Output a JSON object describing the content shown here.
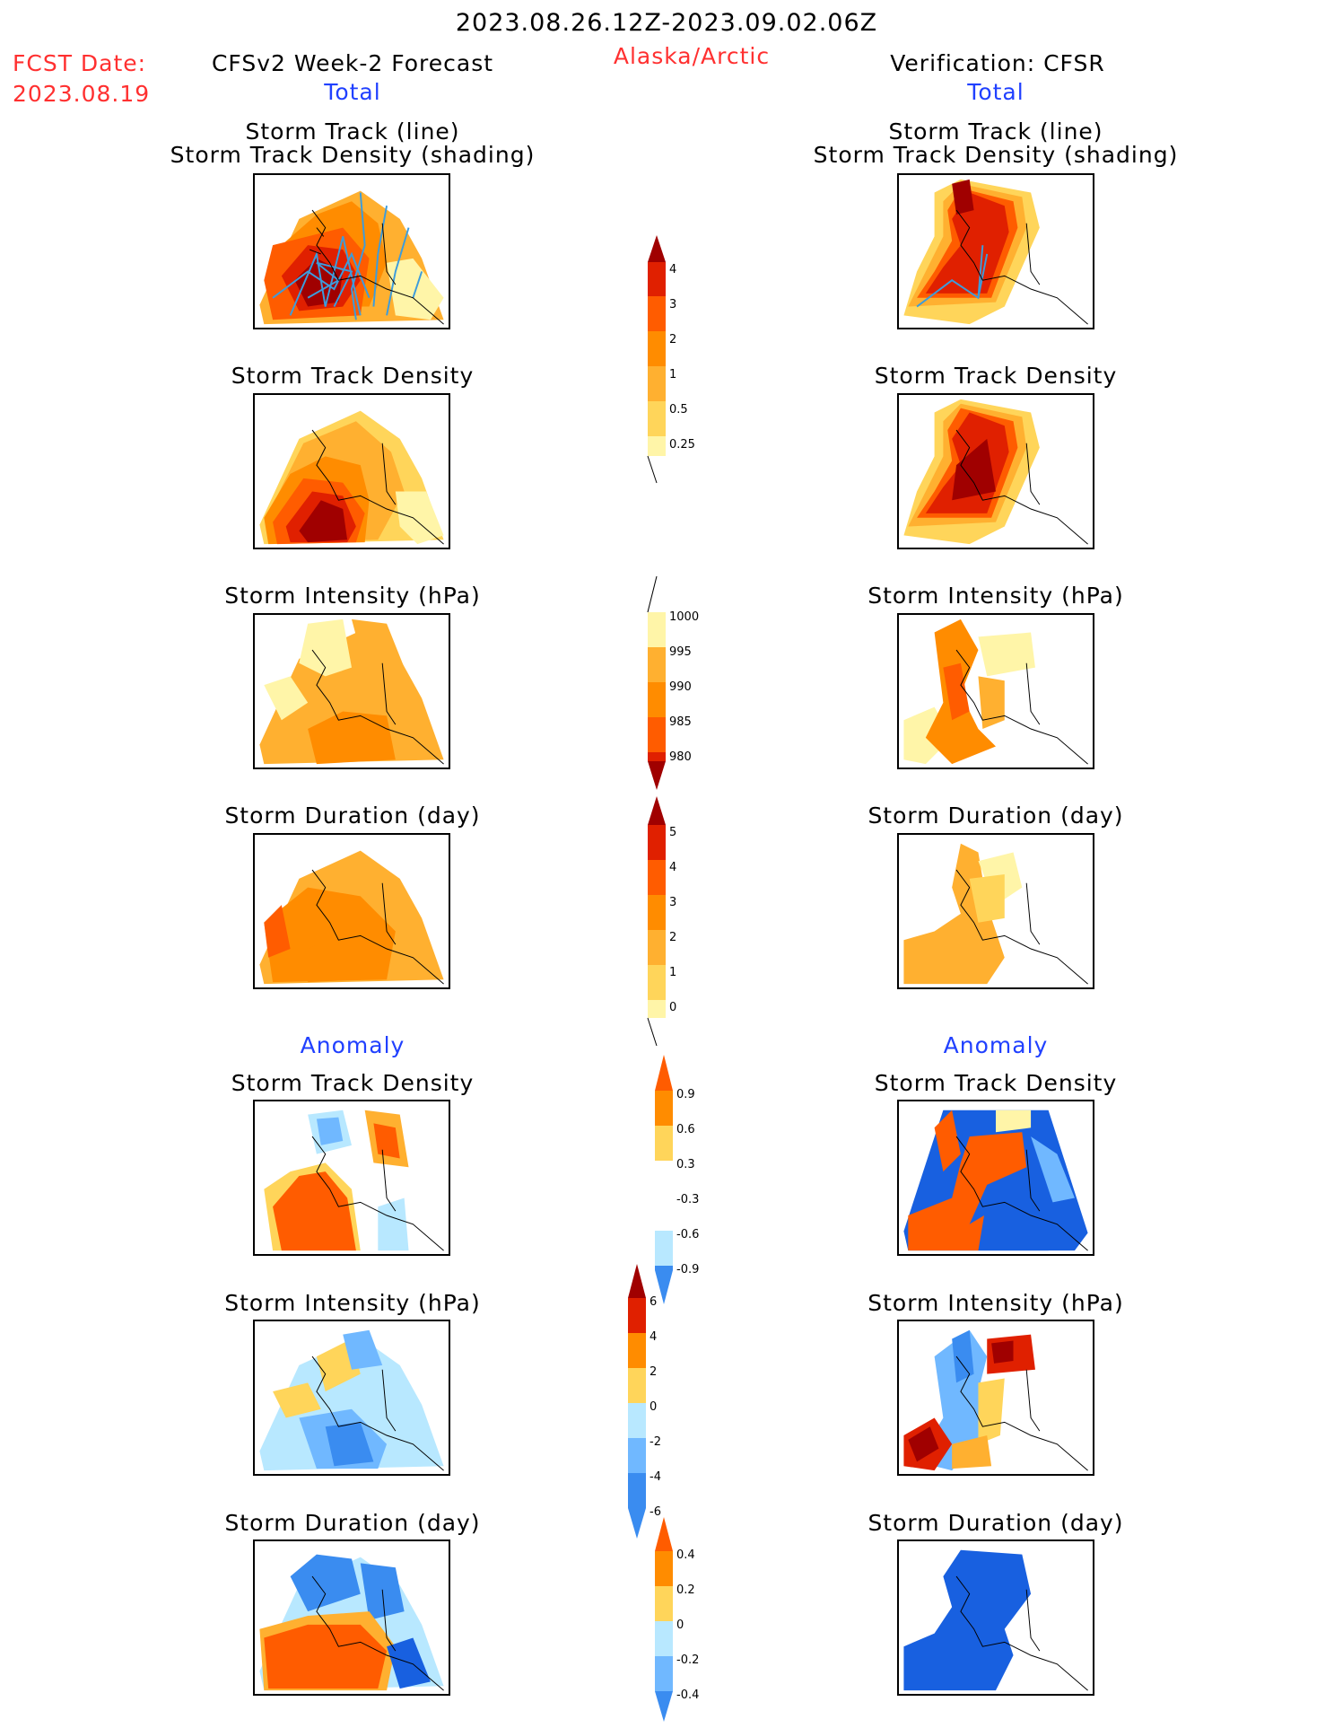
{
  "header": {
    "date_range": "2023.08.26.12Z-2023.09.02.06Z",
    "region": "Alaska/Arctic",
    "fcst_label": "FCST Date:",
    "fcst_date": "2023.08.19",
    "forecast_title": "CFSv2 Week-2 Forecast",
    "verification_title": "Verification: CFSR",
    "total_left": "Total",
    "total_right": "Total",
    "anomaly_left": "Anomaly",
    "anomaly_right": "Anomaly"
  },
  "panel_titles": {
    "track_line": "Storm Track (line)",
    "track_density_shading": "Storm Track Density (shading)",
    "track_density": "Storm Track Density",
    "intensity": "Storm Intensity (hPa)",
    "duration": "Storm Duration (day)"
  },
  "colors": {
    "yellow_light": "#fff5a8",
    "yellow": "#ffd55a",
    "orange_light": "#ffb030",
    "orange": "#ff8c00",
    "orange_dark": "#ff5c00",
    "red": "#e02000",
    "dark_red": "#a00000",
    "light_blue": "#b8e8ff",
    "mid_blue": "#70b8ff",
    "blue": "#3a8cf0",
    "dark_blue": "#1860e0",
    "track_line": "#3c9cdc"
  },
  "colorbars": [
    {
      "id": "density_total",
      "labels": [
        "4",
        "3",
        "2",
        "1",
        "0.5",
        "0.25"
      ]
    },
    {
      "id": "intensity_total",
      "labels": [
        "1000",
        "995",
        "990",
        "985",
        "980"
      ]
    },
    {
      "id": "duration_total",
      "labels": [
        "5",
        "4",
        "3",
        "2",
        "1",
        "0"
      ]
    },
    {
      "id": "density_anomaly",
      "labels": [
        "0.9",
        "0.6",
        "0.3",
        "-0.3",
        "-0.6",
        "-0.9"
      ]
    },
    {
      "id": "intensity_anomaly",
      "labels": [
        "6",
        "4",
        "2",
        "0",
        "-2",
        "-4",
        "-6"
      ]
    },
    {
      "id": "duration_anomaly",
      "labels": [
        "0.4",
        "0.2",
        "0",
        "-0.2",
        "-0.4"
      ]
    }
  ]
}
